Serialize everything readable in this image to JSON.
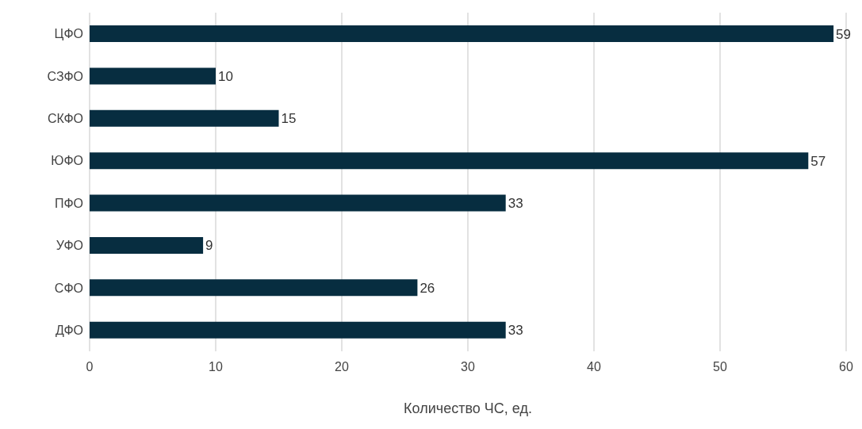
{
  "chart_data": {
    "type": "bar",
    "orientation": "horizontal",
    "xlabel": "Количество ЧС, ед.",
    "categories": [
      "ЦФО",
      "СЗФО",
      "СКФО",
      "ЮФО",
      "ПФО",
      "УФО",
      "СФО",
      "ДФО"
    ],
    "values": [
      59,
      10,
      15,
      57,
      33,
      9,
      26,
      33
    ],
    "color": "#072d40",
    "xlim": [
      0,
      60
    ],
    "xticks": [
      0,
      10,
      20,
      30,
      40,
      50,
      60
    ],
    "grid": "x",
    "data_labels": true
  }
}
